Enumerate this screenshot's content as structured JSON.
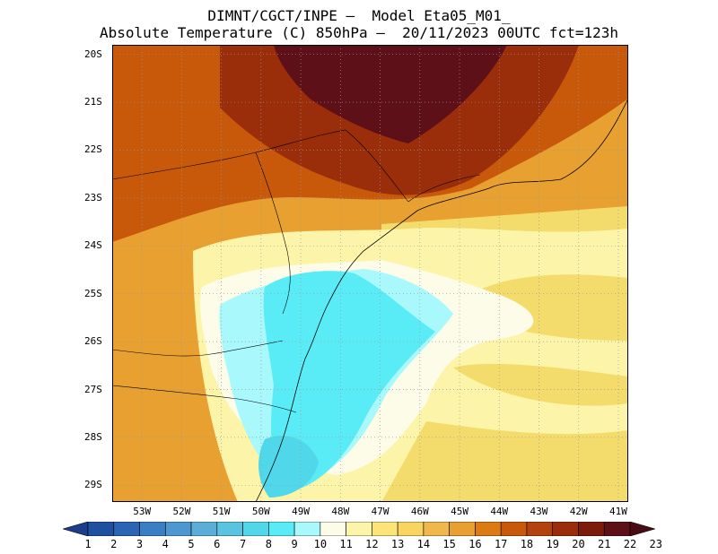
{
  "header": {
    "line1": "DIMNT/CGCT/INPE –  Model Eta05_M01_",
    "line2": "Absolute Temperature (C) 850hPa –  20/11/2023 00UTC fct=123h"
  },
  "map": {
    "lon_range": [
      -53.75,
      -40.75
    ],
    "lat_range": [
      -29.35,
      -19.8
    ],
    "lat_ticks": [
      "20S",
      "21S",
      "22S",
      "23S",
      "24S",
      "25S",
      "26S",
      "27S",
      "28S",
      "29S"
    ],
    "lon_ticks": [
      "53W",
      "52W",
      "51W",
      "50W",
      "49W",
      "48W",
      "47W",
      "46W",
      "45W",
      "44W",
      "43W",
      "42W",
      "41W"
    ]
  },
  "colorbar": {
    "labels": [
      "1",
      "2",
      "3",
      "4",
      "5",
      "6",
      "7",
      "8",
      "9",
      "10",
      "11",
      "12",
      "13",
      "14",
      "15",
      "16",
      "17",
      "18",
      "19",
      "20",
      "21",
      "22",
      "23"
    ],
    "colors": [
      "#1e3c8c",
      "#2050a0",
      "#2a64b4",
      "#3a7ec4",
      "#4e98d2",
      "#5aaed8",
      "#5ac4e0",
      "#50d8ea",
      "#5aecf6",
      "#a8f8fc",
      "#fcfce8",
      "#fcf4a8",
      "#fce478",
      "#f8d460",
      "#f0b84c",
      "#e8a030",
      "#dc7a14",
      "#c8580a",
      "#b4420c",
      "#9a2e0a",
      "#7c1a0c",
      "#5e1018",
      "#4a0c14"
    ]
  },
  "fields": {
    "south_land": "#e8a030",
    "south_sea": "#f4dc6c",
    "north_hot": "#c8580a",
    "core_hot": "#9a2e0a",
    "max_hot": "#5e1018",
    "cold_core": "#5aecf6",
    "cool_band": "#a8f8fc",
    "neutral": "#fcfce8"
  }
}
